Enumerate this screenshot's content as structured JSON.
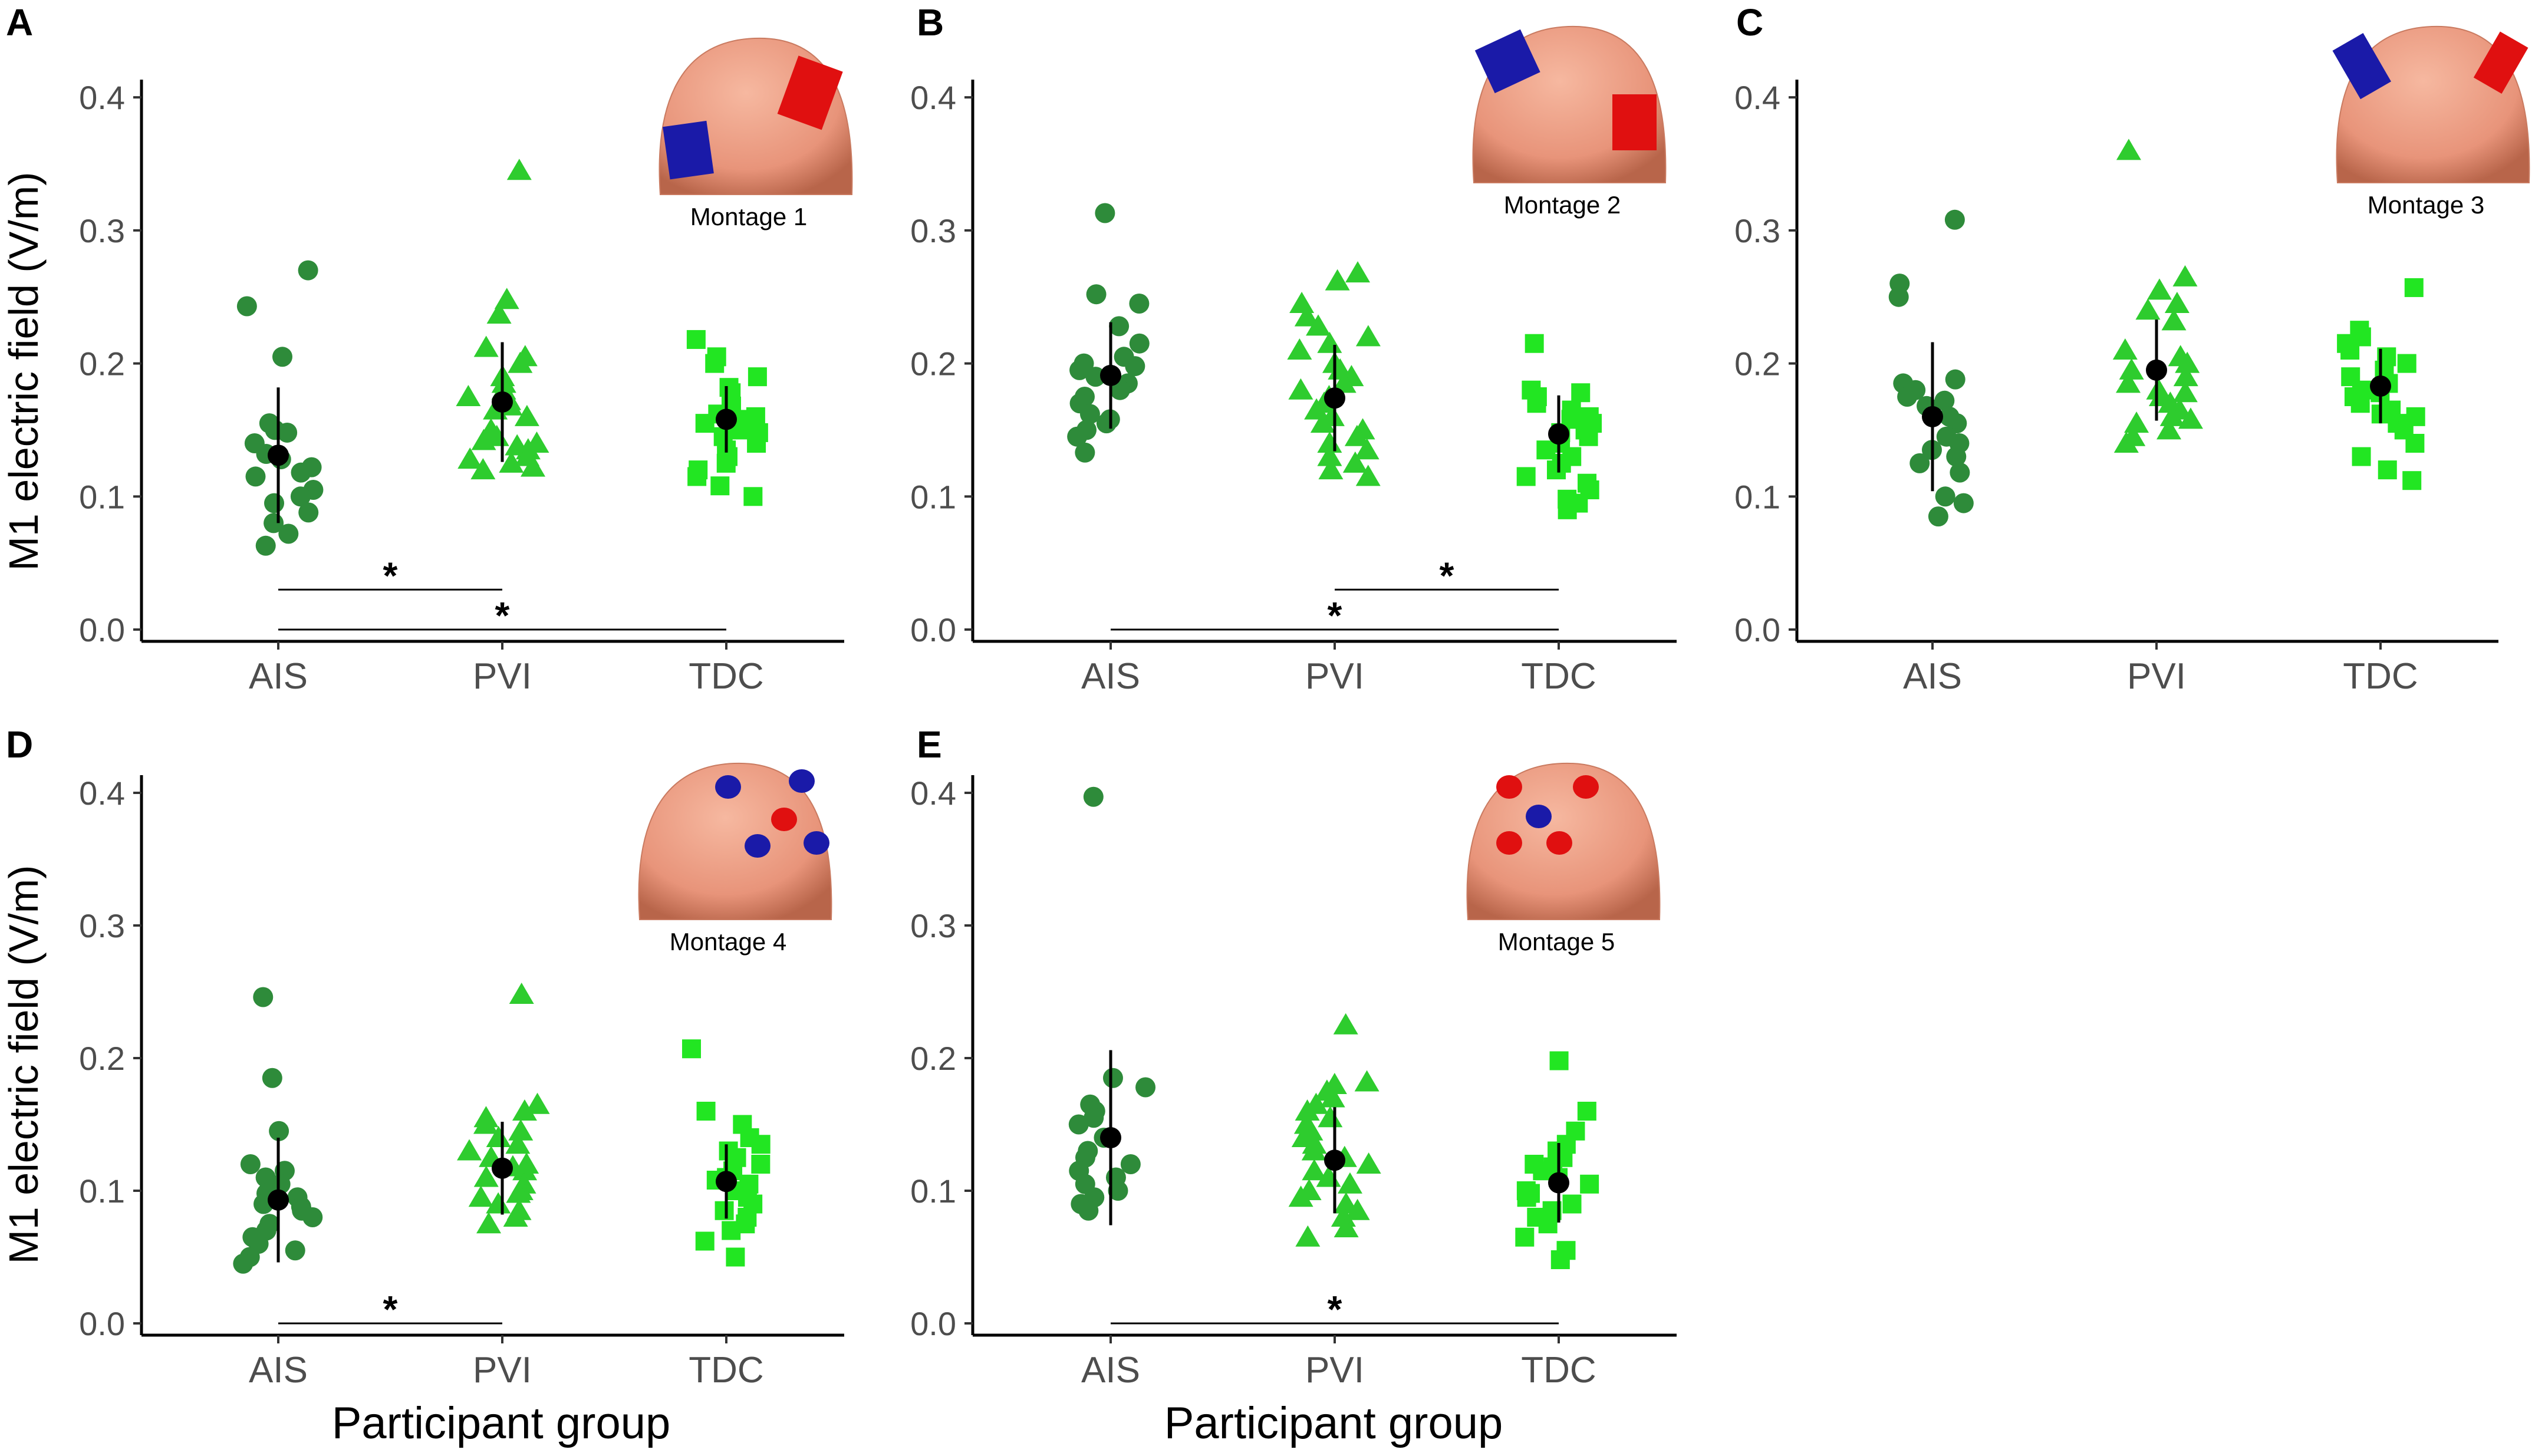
{
  "colors": {
    "ais": "#2e8b3a",
    "pvi": "#2ecc2e",
    "tdc": "#22e622",
    "mean": "#000000",
    "head": "#e8947a",
    "anode": "#e01010",
    "cathode": "#1a1aa8"
  },
  "shared": {
    "ylabel": "M1 electric field (V/m)",
    "xlabel": "Participant group",
    "categories": [
      "AIS",
      "PVI",
      "TDC"
    ],
    "ytick_labels": [
      "0.0",
      "0.1",
      "0.2",
      "0.3",
      "0.4"
    ],
    "significance_mark": "*"
  },
  "chart_data": [
    {
      "type": "scatter",
      "panel": "A",
      "montage": "Montage 1",
      "ylim": [
        0,
        0.42
      ],
      "series": [
        {
          "name": "AIS",
          "values": [
            0.27,
            0.243,
            0.205,
            0.155,
            0.15,
            0.148,
            0.14,
            0.132,
            0.128,
            0.122,
            0.118,
            0.115,
            0.105,
            0.1,
            0.095,
            0.088,
            0.08,
            0.072,
            0.063
          ],
          "mean": 0.131,
          "sd": 0.051
        },
        {
          "name": "PVI",
          "values": [
            0.345,
            0.248,
            0.237,
            0.212,
            0.205,
            0.2,
            0.19,
            0.185,
            0.18,
            0.175,
            0.172,
            0.168,
            0.165,
            0.16,
            0.15,
            0.145,
            0.142,
            0.14,
            0.138,
            0.135,
            0.13,
            0.128,
            0.125,
            0.122,
            0.12
          ],
          "mean": 0.171,
          "sd": 0.045
        },
        {
          "name": "TDC",
          "values": [
            0.218,
            0.205,
            0.2,
            0.19,
            0.182,
            0.178,
            0.172,
            0.168,
            0.165,
            0.162,
            0.16,
            0.158,
            0.155,
            0.152,
            0.15,
            0.148,
            0.145,
            0.14,
            0.135,
            0.13,
            0.125,
            0.12,
            0.115,
            0.108,
            0.1
          ],
          "mean": 0.158,
          "sd": 0.025
        }
      ],
      "significance": [
        {
          "from": "AIS",
          "to": "PVI",
          "y": 0.03,
          "label": "*"
        },
        {
          "from": "AIS",
          "to": "TDC",
          "y": 0.0,
          "label": "*"
        }
      ]
    },
    {
      "type": "scatter",
      "panel": "B",
      "montage": "Montage 2",
      "ylim": [
        0,
        0.42
      ],
      "series": [
        {
          "name": "AIS",
          "values": [
            0.313,
            0.252,
            0.245,
            0.228,
            0.215,
            0.205,
            0.2,
            0.198,
            0.195,
            0.19,
            0.185,
            0.18,
            0.175,
            0.17,
            0.162,
            0.158,
            0.155,
            0.15,
            0.145,
            0.133
          ],
          "mean": 0.191,
          "sd": 0.04
        },
        {
          "name": "PVI",
          "values": [
            0.268,
            0.262,
            0.245,
            0.235,
            0.228,
            0.22,
            0.215,
            0.21,
            0.2,
            0.195,
            0.19,
            0.185,
            0.18,
            0.175,
            0.17,
            0.165,
            0.16,
            0.155,
            0.15,
            0.145,
            0.14,
            0.135,
            0.13,
            0.125,
            0.12,
            0.115
          ],
          "mean": 0.174,
          "sd": 0.04
        },
        {
          "name": "TDC",
          "values": [
            0.215,
            0.18,
            0.178,
            0.175,
            0.17,
            0.165,
            0.16,
            0.158,
            0.155,
            0.15,
            0.148,
            0.145,
            0.14,
            0.135,
            0.13,
            0.125,
            0.12,
            0.115,
            0.11,
            0.105,
            0.098,
            0.095,
            0.09
          ],
          "mean": 0.147,
          "sd": 0.029
        }
      ],
      "significance": [
        {
          "from": "PVI",
          "to": "TDC",
          "y": 0.03,
          "label": "*"
        },
        {
          "from": "AIS",
          "to": "TDC",
          "y": 0.0,
          "label": "*"
        }
      ]
    },
    {
      "type": "scatter",
      "panel": "C",
      "montage": "Montage 3",
      "ylim": [
        0,
        0.42
      ],
      "series": [
        {
          "name": "AIS",
          "values": [
            0.308,
            0.26,
            0.25,
            0.188,
            0.185,
            0.18,
            0.175,
            0.172,
            0.168,
            0.16,
            0.155,
            0.145,
            0.14,
            0.135,
            0.13,
            0.125,
            0.118,
            0.1,
            0.095,
            0.085
          ],
          "mean": 0.16,
          "sd": 0.056
        },
        {
          "name": "PVI",
          "values": [
            0.36,
            0.265,
            0.255,
            0.245,
            0.24,
            0.232,
            0.21,
            0.205,
            0.2,
            0.195,
            0.19,
            0.185,
            0.18,
            0.178,
            0.175,
            0.17,
            0.165,
            0.16,
            0.158,
            0.155,
            0.15,
            0.145,
            0.14
          ],
          "mean": 0.195,
          "sd": 0.038
        },
        {
          "name": "TDC",
          "values": [
            0.257,
            0.225,
            0.22,
            0.215,
            0.21,
            0.205,
            0.2,
            0.195,
            0.19,
            0.185,
            0.18,
            0.178,
            0.175,
            0.17,
            0.165,
            0.162,
            0.16,
            0.155,
            0.15,
            0.14,
            0.13,
            0.12,
            0.112
          ],
          "mean": 0.183,
          "sd": 0.028
        }
      ],
      "significance": []
    },
    {
      "type": "scatter",
      "panel": "D",
      "montage": "Montage 4",
      "ylim": [
        0,
        0.42
      ],
      "series": [
        {
          "name": "AIS",
          "values": [
            0.246,
            0.185,
            0.145,
            0.12,
            0.115,
            0.11,
            0.105,
            0.1,
            0.098,
            0.095,
            0.09,
            0.088,
            0.085,
            0.08,
            0.075,
            0.07,
            0.065,
            0.06,
            0.055,
            0.05,
            0.045
          ],
          "mean": 0.093,
          "sd": 0.047
        },
        {
          "name": "PVI",
          "values": [
            0.248,
            0.165,
            0.16,
            0.155,
            0.15,
            0.145,
            0.14,
            0.135,
            0.13,
            0.125,
            0.12,
            0.118,
            0.115,
            0.11,
            0.105,
            0.1,
            0.098,
            0.095,
            0.09,
            0.085,
            0.08,
            0.075
          ],
          "mean": 0.117,
          "sd": 0.035
        },
        {
          "name": "TDC",
          "values": [
            0.207,
            0.16,
            0.15,
            0.14,
            0.135,
            0.13,
            0.125,
            0.12,
            0.115,
            0.11,
            0.108,
            0.105,
            0.1,
            0.095,
            0.09,
            0.085,
            0.08,
            0.075,
            0.07,
            0.062,
            0.05
          ],
          "mean": 0.107,
          "sd": 0.028
        }
      ],
      "significance": [
        {
          "from": "AIS",
          "to": "PVI",
          "y": 0.0,
          "label": "*"
        }
      ]
    },
    {
      "type": "scatter",
      "panel": "E",
      "montage": "Montage 5",
      "ylim": [
        0,
        0.42
      ],
      "series": [
        {
          "name": "AIS",
          "values": [
            0.397,
            0.185,
            0.178,
            0.165,
            0.16,
            0.155,
            0.15,
            0.14,
            0.13,
            0.125,
            0.12,
            0.115,
            0.11,
            0.105,
            0.1,
            0.095,
            0.09,
            0.085
          ],
          "mean": 0.14,
          "sd": 0.066
        },
        {
          "name": "PVI",
          "values": [
            0.225,
            0.182,
            0.18,
            0.175,
            0.17,
            0.165,
            0.16,
            0.155,
            0.15,
            0.145,
            0.14,
            0.135,
            0.13,
            0.125,
            0.12,
            0.115,
            0.11,
            0.105,
            0.1,
            0.095,
            0.09,
            0.085,
            0.08,
            0.072,
            0.065
          ],
          "mean": 0.123,
          "sd": 0.04
        },
        {
          "name": "TDC",
          "values": [
            0.198,
            0.16,
            0.145,
            0.135,
            0.13,
            0.125,
            0.12,
            0.118,
            0.115,
            0.11,
            0.105,
            0.1,
            0.098,
            0.095,
            0.09,
            0.085,
            0.08,
            0.075,
            0.065,
            0.055,
            0.048
          ],
          "mean": 0.106,
          "sd": 0.03
        }
      ],
      "significance": [
        {
          "from": "AIS",
          "to": "TDC",
          "y": 0.0,
          "label": "*"
        }
      ]
    }
  ]
}
